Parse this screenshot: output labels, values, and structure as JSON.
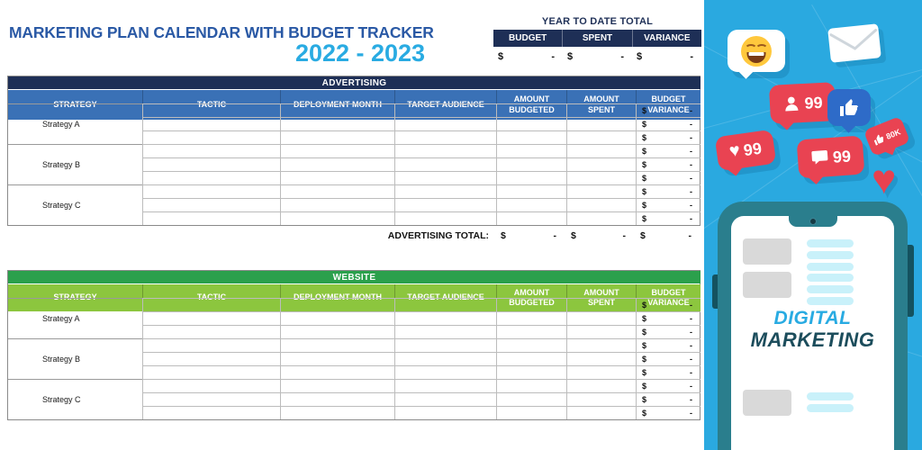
{
  "app": {
    "title": "MARKETING PLAN CALENDAR WITH BUDGET TRACKER",
    "years": "2022 - 2023"
  },
  "ytd": {
    "label": "YEAR TO DATE TOTAL",
    "columns": [
      "BUDGET",
      "SPENT",
      "VARIANCE"
    ],
    "values": [
      {
        "symbol": "$",
        "amount": "-"
      },
      {
        "symbol": "$",
        "amount": "-"
      },
      {
        "symbol": "$",
        "amount": "-"
      }
    ]
  },
  "sections": [
    {
      "name": "ADVERTISING",
      "columns": [
        "STRATEGY",
        "TACTIC",
        "DEPLOYMENT MONTH",
        "TARGET AUDIENCE",
        "AMOUNT BUDGETED",
        "AMOUNT SPENT",
        "BUDGET VARIANCE"
      ],
      "groups": [
        {
          "strategy": "Strategy A",
          "rows": 3
        },
        {
          "strategy": "Strategy B",
          "rows": 3
        },
        {
          "strategy": "Strategy C",
          "rows": 3
        }
      ],
      "variance_cell": {
        "symbol": "$",
        "amount": "-"
      },
      "total": {
        "label": "ADVERTISING TOTAL:",
        "values": [
          {
            "symbol": "$",
            "amount": "-"
          },
          {
            "symbol": "$",
            "amount": "-"
          },
          {
            "symbol": "$",
            "amount": "-"
          }
        ]
      }
    },
    {
      "name": "WEBSITE",
      "columns": [
        "STRATEGY",
        "TACTIC",
        "DEPLOYMENT MONTH",
        "TARGET AUDIENCE",
        "AMOUNT BUDGETED",
        "AMOUNT SPENT",
        "BUDGET VARIANCE"
      ],
      "groups": [
        {
          "strategy": "Strategy A",
          "rows": 3
        },
        {
          "strategy": "Strategy B",
          "rows": 3
        },
        {
          "strategy": "Strategy C",
          "rows": 3
        }
      ],
      "variance_cell": {
        "symbol": "$",
        "amount": "-"
      }
    }
  ],
  "graphic": {
    "badges": {
      "followers": "99",
      "likes": "99",
      "comments": "99",
      "thumbs": "80K"
    },
    "phone": {
      "word1": "DIGITAL",
      "word2": "MARKETING"
    }
  },
  "colors": {
    "navy_band": "#1e2f56",
    "header_blue": "#3a71b6",
    "green_band": "#2ba04c",
    "header_green": "#8cc63e",
    "title_blue": "#2a59a5",
    "sky_blue": "#29abe2",
    "panel_blue": "#2aa9e0",
    "badge_red": "#e94352",
    "facebook_blue": "#2e6bc8",
    "phone_teal": "#2a7e8d",
    "marketing_teal": "#1c4d5c"
  }
}
